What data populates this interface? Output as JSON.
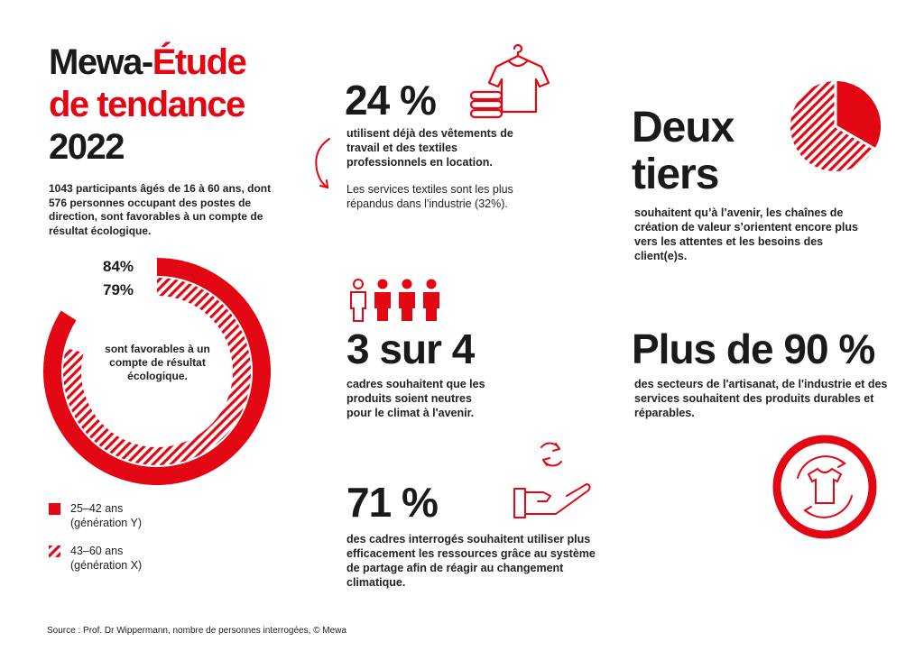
{
  "colors": {
    "accent": "#e30613",
    "text": "#1a1a1a"
  },
  "header": {
    "title_part1": "Mewa-",
    "title_part2": "Étude",
    "title_line2": "de tendance",
    "title_line3": "2022",
    "intro": "1043 participants âgés de 16 à 60 ans, dont 576 personnes occupant des postes de direction, sont favorables à un compte de résultat écologique."
  },
  "chart_data": {
    "type": "pie",
    "title": "",
    "series": [
      {
        "name": "25–42 ans (génération Y)",
        "value": 84,
        "label": "84%",
        "style": "solid"
      },
      {
        "name": "43–60 ans (génération X)",
        "value": 79,
        "label": "79%",
        "style": "hatched"
      }
    ],
    "center_label": "sont favorables à un compte de résultat écologique."
  },
  "legend": {
    "item1_line1": "25–42 ans",
    "item1_line2": "(génération Y)",
    "item2_line1": "43–60 ans",
    "item2_line2": "(génération X)"
  },
  "stat_24": {
    "value": "24 %",
    "text": "utilisent déjà des vêtements de travail et des textiles professionnels en location.",
    "subtext": "Les services textiles sont les plus répandus dans l'industrie (32%).",
    "icon": "shirt-stack-icon"
  },
  "stat_two_thirds": {
    "value_line1": "Deux",
    "value_line2": "tiers",
    "text": "souhaitent qu’à l’avenir, les chaînes de création de valeur s’orientent encore plus vers les attentes et les besoins des client(e)s.",
    "icon": "pie-two-thirds-icon"
  },
  "stat_3_of_4": {
    "value": "3 sur 4",
    "text": "cadres souhaitent que les produits soient neutres pour le climat à l'avenir.",
    "icon": "people-icon"
  },
  "stat_90": {
    "value": "Plus de 90 %",
    "text": "des secteurs de l'artisanat, de l'industrie et des services souhaitent des produits durables et réparables.",
    "icon": "shirt-cycle-icon"
  },
  "stat_71": {
    "value": "71 %",
    "text": "des cadres interrogés souhaitent utiliser plus efficacement les ressources grâce au système de partage afin de réagir au changement climatique.",
    "icon": "hand-recycle-icon"
  },
  "footer": {
    "source": "Source : Prof. Dr Wippermann, nombre de personnes interrogées, © Mewa"
  }
}
